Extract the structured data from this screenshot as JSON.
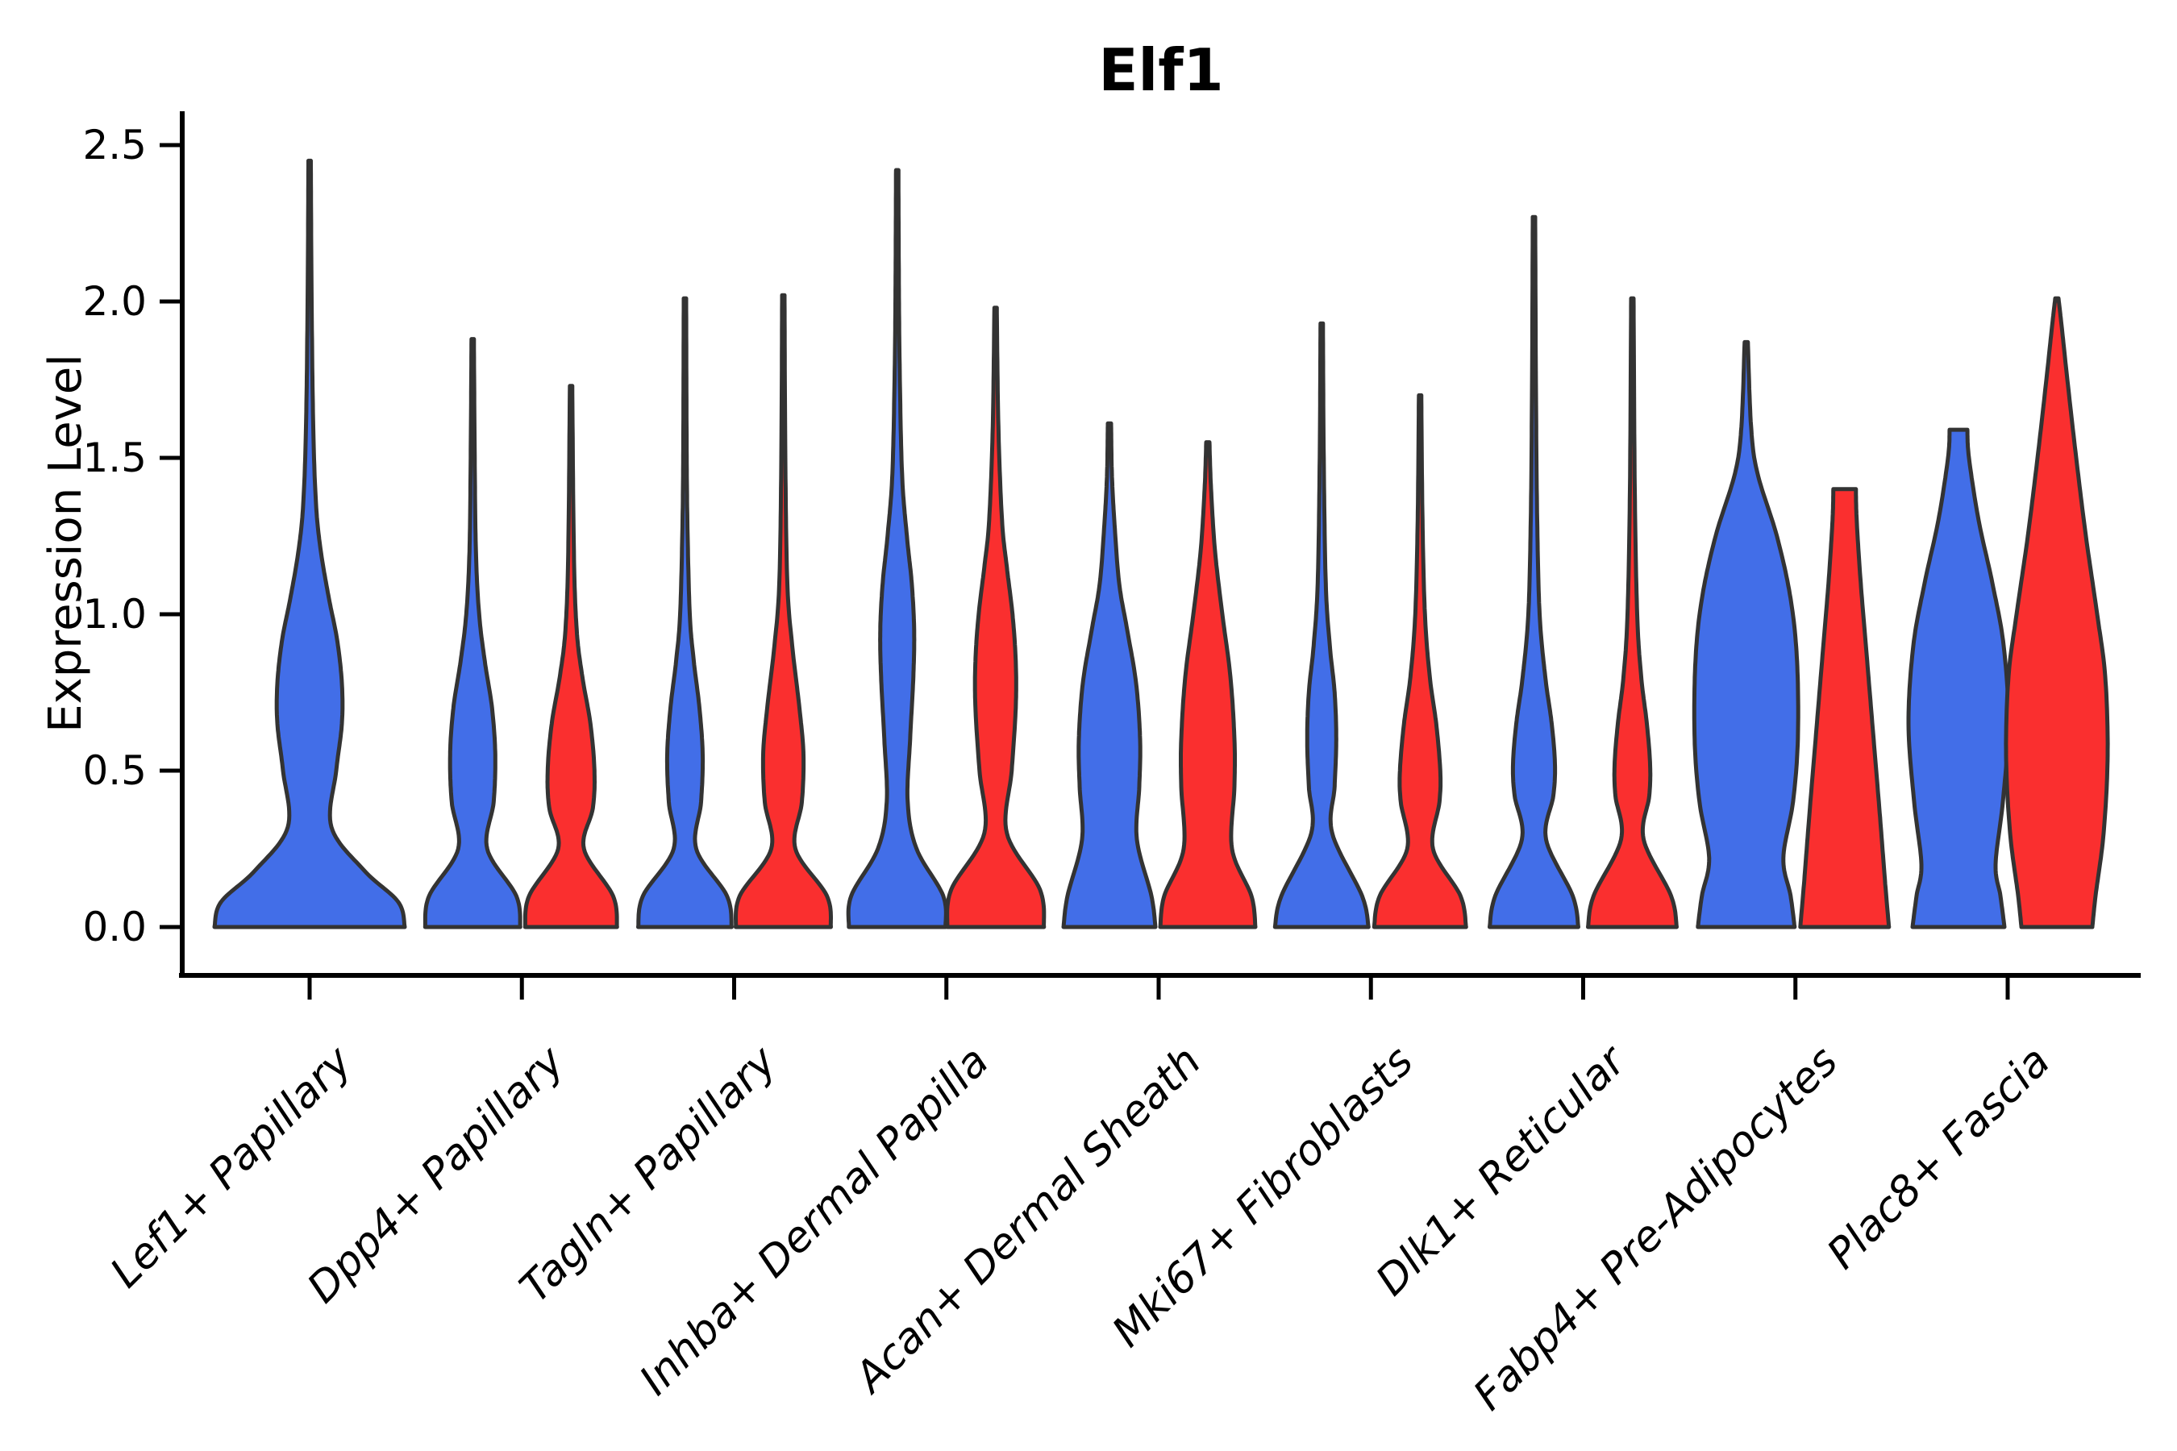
{
  "title": "Elf1",
  "y_axis": {
    "label": "Expression Level",
    "ticks": [
      {
        "label": "0.0",
        "value": 0.0
      },
      {
        "label": "0.5",
        "value": 0.5
      },
      {
        "label": "1.0",
        "value": 1.0
      },
      {
        "label": "1.5",
        "value": 1.5
      },
      {
        "label": "2.0",
        "value": 2.0
      },
      {
        "label": "2.5",
        "value": 2.5
      }
    ]
  },
  "colors": {
    "blue_fill": "#426EE8",
    "red_fill": "#FA2F2F",
    "violin_outline": "#333333",
    "axis_color": "#000000"
  },
  "chart_data": {
    "type": "violin",
    "title": "Elf1",
    "xlabel": "",
    "ylabel": "Expression Level",
    "ylim": [
      0,
      2.6
    ],
    "grid": false,
    "legend": "none",
    "categories": [
      "Lef1+ Papillary",
      "Dpp4+ Papillary",
      "Tagln+ Papillary",
      "Inhba+ Dermal Papilla",
      "Acan+ Dermal Sheath",
      "Mki67+ Fibroblasts",
      "Dlk1+ Reticular",
      "Fabp4+ Pre-Adipocytes",
      "Plac8+ Fascia"
    ],
    "profile_note": "profile = [expression_level, half_width_px] pairs read off the rendered violins; max expression per violin = last profile point; flat_top = violin truncated with flat cap",
    "series": [
      {
        "name": "blue",
        "color": "#426EE8",
        "violins": [
          {
            "category": 0,
            "max": 2.45,
            "flat_top": false,
            "single_full_width": true,
            "profile": [
              [
                0,
                118
              ],
              [
                0.08,
                110
              ],
              [
                0.18,
                68
              ],
              [
                0.32,
                27
              ],
              [
                0.5,
                33
              ],
              [
                0.65,
                40
              ],
              [
                0.78,
                40
              ],
              [
                0.92,
                34
              ],
              [
                1.05,
                24
              ],
              [
                1.2,
                14
              ],
              [
                1.35,
                8
              ],
              [
                1.6,
                4.5
              ],
              [
                2.0,
                2.5
              ],
              [
                2.45,
                1.5
              ]
            ]
          },
          {
            "category": 1,
            "max": 1.88,
            "flat_top": false,
            "single_full_width": false,
            "profile": [
              [
                0,
                59
              ],
              [
                0.1,
                54
              ],
              [
                0.25,
                18
              ],
              [
                0.4,
                26
              ],
              [
                0.55,
                28
              ],
              [
                0.7,
                24
              ],
              [
                0.85,
                15
              ],
              [
                1.0,
                8
              ],
              [
                1.2,
                4
              ],
              [
                1.5,
                2.5
              ],
              [
                1.88,
                1.5
              ]
            ]
          },
          {
            "category": 2,
            "max": 2.01,
            "flat_top": false,
            "single_full_width": false,
            "profile": [
              [
                0,
                58
              ],
              [
                0.1,
                52
              ],
              [
                0.25,
                14
              ],
              [
                0.4,
                20
              ],
              [
                0.55,
                22
              ],
              [
                0.7,
                18
              ],
              [
                0.85,
                11
              ],
              [
                1.0,
                6
              ],
              [
                1.3,
                3
              ],
              [
                1.6,
                2
              ],
              [
                2.01,
                1.5
              ]
            ]
          },
          {
            "category": 3,
            "max": 2.42,
            "flat_top": false,
            "single_full_width": false,
            "profile": [
              [
                0,
                60
              ],
              [
                0.1,
                57
              ],
              [
                0.25,
                24
              ],
              [
                0.4,
                13
              ],
              [
                0.6,
                16
              ],
              [
                0.8,
                20
              ],
              [
                0.95,
                21
              ],
              [
                1.1,
                18
              ],
              [
                1.25,
                12
              ],
              [
                1.45,
                6
              ],
              [
                1.8,
                3
              ],
              [
                2.1,
                2
              ],
              [
                2.42,
                1.5
              ]
            ]
          },
          {
            "category": 4,
            "max": 1.61,
            "flat_top": false,
            "single_full_width": false,
            "profile": [
              [
                0,
                57
              ],
              [
                0.1,
                52
              ],
              [
                0.28,
                34
              ],
              [
                0.45,
                37
              ],
              [
                0.6,
                38
              ],
              [
                0.78,
                33
              ],
              [
                0.95,
                22
              ],
              [
                1.1,
                12
              ],
              [
                1.3,
                6
              ],
              [
                1.45,
                3
              ],
              [
                1.61,
                2
              ]
            ]
          },
          {
            "category": 5,
            "max": 1.93,
            "flat_top": false,
            "single_full_width": false,
            "profile": [
              [
                0,
                58
              ],
              [
                0.1,
                50
              ],
              [
                0.3,
                13
              ],
              [
                0.45,
                16
              ],
              [
                0.6,
                18
              ],
              [
                0.75,
                16
              ],
              [
                0.9,
                10
              ],
              [
                1.1,
                5
              ],
              [
                1.5,
                2.5
              ],
              [
                1.93,
                1.5
              ]
            ]
          },
          {
            "category": 6,
            "max": 2.27,
            "flat_top": false,
            "single_full_width": false,
            "profile": [
              [
                0,
                55
              ],
              [
                0.1,
                48
              ],
              [
                0.28,
                15
              ],
              [
                0.42,
                24
              ],
              [
                0.52,
                26
              ],
              [
                0.65,
                22
              ],
              [
                0.8,
                14
              ],
              [
                1.0,
                7
              ],
              [
                1.3,
                4
              ],
              [
                1.7,
                2.5
              ],
              [
                2.27,
                1.5
              ]
            ]
          },
          {
            "category": 7,
            "max": 1.87,
            "flat_top": false,
            "single_full_width": false,
            "profile": [
              [
                0,
                60
              ],
              [
                0.1,
                55
              ],
              [
                0.22,
                46
              ],
              [
                0.4,
                58
              ],
              [
                0.6,
                64
              ],
              [
                0.85,
                63
              ],
              [
                1.05,
                55
              ],
              [
                1.25,
                38
              ],
              [
                1.45,
                14
              ],
              [
                1.6,
                6
              ],
              [
                1.87,
                2
              ]
            ]
          },
          {
            "category": 8,
            "max": 1.59,
            "flat_top": true,
            "single_full_width": false,
            "profile": [
              [
                0,
                57
              ],
              [
                0.1,
                52
              ],
              [
                0.2,
                46
              ],
              [
                0.4,
                55
              ],
              [
                0.65,
                62
              ],
              [
                0.9,
                56
              ],
              [
                1.1,
                42
              ],
              [
                1.3,
                25
              ],
              [
                1.5,
                13
              ],
              [
                1.59,
                11
              ]
            ]
          }
        ]
      },
      {
        "name": "red",
        "color": "#FA2F2F",
        "violins": [
          {
            "category": 1,
            "max": 1.73,
            "flat_top": false,
            "single_full_width": false,
            "profile": [
              [
                0,
                57
              ],
              [
                0.1,
                52
              ],
              [
                0.25,
                16
              ],
              [
                0.38,
                27
              ],
              [
                0.5,
                29
              ],
              [
                0.65,
                24
              ],
              [
                0.8,
                14
              ],
              [
                0.95,
                7
              ],
              [
                1.2,
                3.5
              ],
              [
                1.73,
                1.5
              ]
            ]
          },
          {
            "category": 2,
            "max": 2.02,
            "flat_top": false,
            "single_full_width": false,
            "profile": [
              [
                0,
                59
              ],
              [
                0.1,
                54
              ],
              [
                0.25,
                15
              ],
              [
                0.4,
                23
              ],
              [
                0.55,
                25
              ],
              [
                0.7,
                20
              ],
              [
                0.9,
                11
              ],
              [
                1.1,
                5
              ],
              [
                1.5,
                2.5
              ],
              [
                2.02,
                1.5
              ]
            ]
          },
          {
            "category": 3,
            "max": 1.98,
            "flat_top": false,
            "single_full_width": false,
            "profile": [
              [
                0,
                60
              ],
              [
                0.12,
                55
              ],
              [
                0.3,
                14
              ],
              [
                0.5,
                20
              ],
              [
                0.7,
                25
              ],
              [
                0.85,
                25
              ],
              [
                1.0,
                21
              ],
              [
                1.15,
                14
              ],
              [
                1.3,
                8
              ],
              [
                1.6,
                3.5
              ],
              [
                1.98,
                1.5
              ]
            ]
          },
          {
            "category": 4,
            "max": 1.55,
            "flat_top": false,
            "single_full_width": false,
            "profile": [
              [
                0,
                59
              ],
              [
                0.1,
                54
              ],
              [
                0.25,
                30
              ],
              [
                0.45,
                33
              ],
              [
                0.6,
                33
              ],
              [
                0.8,
                28
              ],
              [
                1.0,
                18
              ],
              [
                1.2,
                9
              ],
              [
                1.4,
                4
              ],
              [
                1.55,
                2
              ]
            ]
          },
          {
            "category": 5,
            "max": 1.7,
            "flat_top": false,
            "single_full_width": false,
            "profile": [
              [
                0,
                57
              ],
              [
                0.1,
                50
              ],
              [
                0.25,
                16
              ],
              [
                0.4,
                24
              ],
              [
                0.5,
                25
              ],
              [
                0.65,
                20
              ],
              [
                0.8,
                12
              ],
              [
                1.0,
                6
              ],
              [
                1.3,
                3
              ],
              [
                1.7,
                1.5
              ]
            ]
          },
          {
            "category": 6,
            "max": 2.01,
            "flat_top": false,
            "single_full_width": false,
            "profile": [
              [
                0,
                55
              ],
              [
                0.1,
                48
              ],
              [
                0.28,
                14
              ],
              [
                0.42,
                21
              ],
              [
                0.52,
                22
              ],
              [
                0.65,
                18
              ],
              [
                0.8,
                11
              ],
              [
                1.0,
                6
              ],
              [
                1.4,
                3
              ],
              [
                2.01,
                1.5
              ]
            ]
          },
          {
            "category": 7,
            "max": 1.4,
            "flat_top": true,
            "single_full_width": false,
            "profile": [
              [
                0,
                55
              ],
              [
                0.15,
                50
              ],
              [
                0.35,
                44
              ],
              [
                0.6,
                36
              ],
              [
                0.85,
                28
              ],
              [
                1.1,
                20
              ],
              [
                1.3,
                15
              ],
              [
                1.4,
                14
              ]
            ]
          },
          {
            "category": 8,
            "max": 2.01,
            "flat_top": false,
            "single_full_width": false,
            "profile": [
              [
                0,
                44
              ],
              [
                0.1,
                48
              ],
              [
                0.3,
                58
              ],
              [
                0.55,
                63
              ],
              [
                0.8,
                60
              ],
              [
                1.0,
                50
              ],
              [
                1.25,
                36
              ],
              [
                1.5,
                24
              ],
              [
                1.75,
                13
              ],
              [
                1.92,
                6
              ],
              [
                2.01,
                2
              ]
            ]
          }
        ]
      }
    ]
  }
}
